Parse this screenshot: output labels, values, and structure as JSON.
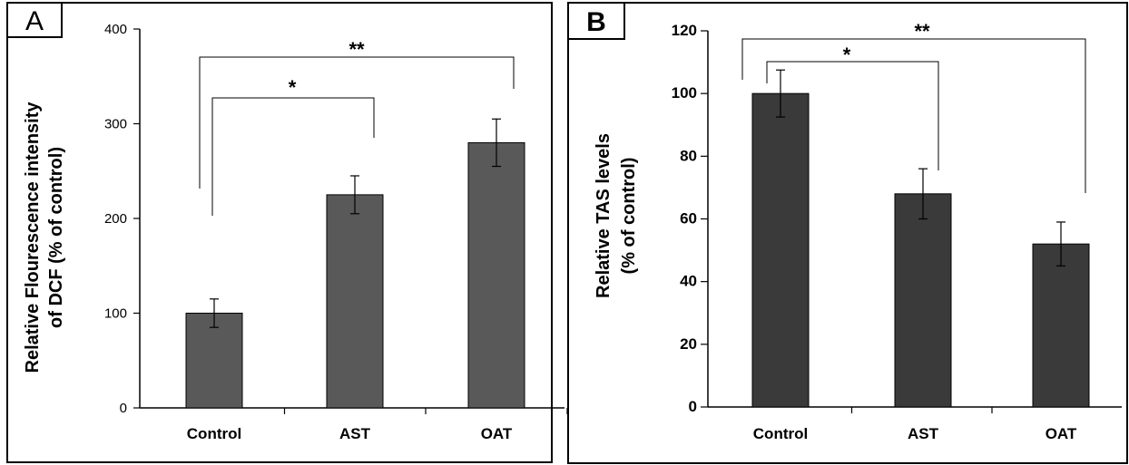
{
  "chart_data": [
    {
      "type": "bar",
      "panel_label": "A",
      "categories": [
        "Control",
        "AST",
        "OAT"
      ],
      "values": [
        100,
        225,
        280
      ],
      "errors": [
        15,
        20,
        25
      ],
      "ylabel_line1": "Relative Flourescence intensity",
      "ylabel_line2": "of DCF (% of control)",
      "yticks": [
        "0",
        "100",
        "200",
        "300",
        "400"
      ],
      "ylim": [
        0,
        400
      ],
      "bar_color": "#595959",
      "significance": [
        {
          "from": "Control",
          "to": "AST",
          "label": "*"
        },
        {
          "from": "Control",
          "to": "OAT",
          "label": "**"
        }
      ]
    },
    {
      "type": "bar",
      "panel_label": "B",
      "categories": [
        "Control",
        "AST",
        "OAT"
      ],
      "values": [
        100,
        68,
        52
      ],
      "errors": [
        7.5,
        8,
        7
      ],
      "ylabel_line1": "Relative TAS levels",
      "ylabel_line2": "(% of control)",
      "yticks": [
        "0",
        "20",
        "40",
        "60",
        "80",
        "100",
        "120"
      ],
      "ylim": [
        0,
        120
      ],
      "bar_color": "#3a3a3a",
      "significance": [
        {
          "from": "Control",
          "to": "AST",
          "label": "*"
        },
        {
          "from": "Control",
          "to": "OAT",
          "label": "**"
        }
      ]
    }
  ]
}
